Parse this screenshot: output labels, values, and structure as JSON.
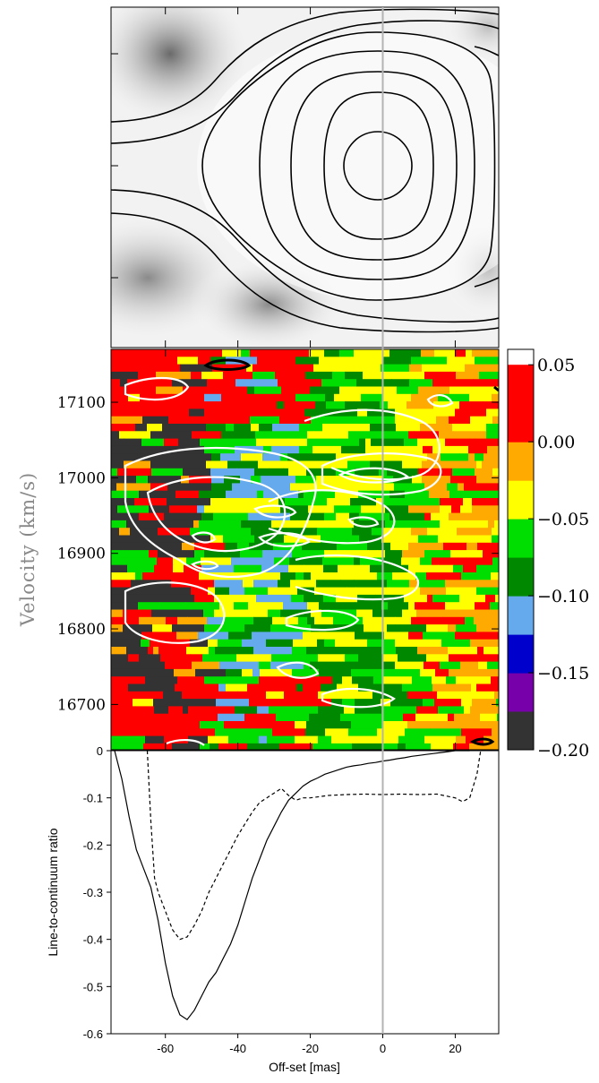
{
  "chart_data": [
    {
      "panel": "top",
      "type": "heatmap",
      "description": "grey-scale continuum image with black contours",
      "xlim": [
        -75,
        32
      ],
      "contour_color": "#000000",
      "vertical_line_x": 0
    },
    {
      "panel": "middle",
      "type": "heatmap",
      "xlim": [
        -75,
        32
      ],
      "ylim": [
        16640,
        17170
      ],
      "ylabel": "Velocity (km/s)",
      "y_ticks": [
        17100,
        17000,
        16900,
        16800,
        16700
      ],
      "y_tick_labels": [
        "17100",
        "17000",
        "16900",
        "16800",
        "16700"
      ],
      "colorbar": {
        "min": -0.2,
        "max": 0.06,
        "step": 0.025,
        "tick_labels": [
          "0.05",
          "0.00",
          "−0.05",
          "−0.10",
          "−0.15",
          "−0.20"
        ],
        "tick_values": [
          0.05,
          0.0,
          -0.05,
          -0.1,
          -0.15,
          -0.2
        ],
        "colors": [
          "#333333",
          "#7700aa",
          "#0000cc",
          "#66aaee",
          "#008800",
          "#00dd00",
          "#ffff00",
          "#ffaa00",
          "#ff0000",
          "#ff0000"
        ]
      },
      "white_contours": true,
      "black_contours": true
    },
    {
      "panel": "bottom",
      "type": "line",
      "xlabel": "Off-set [mas]",
      "ylabel": "Line-to-continuum ratio",
      "xlim": [
        -75,
        32
      ],
      "ylim": [
        -0.6,
        0.0
      ],
      "x_ticks": [
        -60,
        -40,
        -20,
        0,
        20
      ],
      "x_tick_labels": [
        "-60",
        "-40",
        "-20",
        "0",
        "20"
      ],
      "y_ticks": [
        0,
        -0.1,
        -0.2,
        -0.3,
        -0.4,
        -0.5,
        -0.6
      ],
      "y_tick_labels": [
        "0",
        "-0.1",
        "-0.2",
        "-0.3",
        "-0.4",
        "-0.5",
        "-0.6"
      ],
      "series": [
        {
          "style": "solid",
          "x": [
            -74,
            -72,
            -70,
            -68,
            -66,
            -64,
            -62,
            -60,
            -58,
            -56,
            -54,
            -52,
            -50,
            -48,
            -46,
            -44,
            -42,
            -40,
            -38,
            -36,
            -34,
            -32,
            -30,
            -28,
            -26,
            -24,
            -22,
            -20,
            -18,
            -16,
            -14,
            -12,
            -10,
            -8,
            -6,
            -4,
            -2,
            0,
            2,
            4,
            6,
            8,
            10,
            12,
            14,
            16,
            18,
            20,
            22,
            24
          ],
          "y": [
            0.0,
            -0.06,
            -0.14,
            -0.21,
            -0.25,
            -0.29,
            -0.36,
            -0.45,
            -0.52,
            -0.56,
            -0.57,
            -0.55,
            -0.52,
            -0.49,
            -0.47,
            -0.44,
            -0.41,
            -0.37,
            -0.32,
            -0.27,
            -0.23,
            -0.19,
            -0.16,
            -0.13,
            -0.105,
            -0.09,
            -0.075,
            -0.065,
            -0.058,
            -0.05,
            -0.045,
            -0.04,
            -0.035,
            -0.032,
            -0.03,
            -0.027,
            -0.025,
            -0.022,
            -0.02,
            -0.017,
            -0.015,
            -0.012,
            -0.01,
            -0.008,
            -0.006,
            -0.004,
            -0.002,
            0.0,
            0.0,
            0.0
          ]
        },
        {
          "style": "dashed",
          "x": [
            -65,
            -64,
            -63,
            -62,
            -60,
            -58,
            -56,
            -54,
            -52,
            -50,
            -48,
            -46,
            -44,
            -42,
            -40,
            -38,
            -36,
            -34,
            -32,
            -30,
            -28,
            -26,
            -24,
            -22,
            -20,
            -15,
            -10,
            -5,
            0,
            5,
            10,
            15,
            20,
            22,
            24,
            26,
            27
          ],
          "y": [
            0.0,
            -0.15,
            -0.27,
            -0.3,
            -0.34,
            -0.38,
            -0.4,
            -0.395,
            -0.37,
            -0.34,
            -0.3,
            -0.27,
            -0.24,
            -0.21,
            -0.18,
            -0.155,
            -0.13,
            -0.11,
            -0.1,
            -0.09,
            -0.08,
            -0.095,
            -0.105,
            -0.1,
            -0.1,
            -0.095,
            -0.093,
            -0.092,
            -0.093,
            -0.092,
            -0.093,
            -0.092,
            -0.1,
            -0.108,
            -0.1,
            -0.05,
            0.0
          ]
        }
      ]
    }
  ]
}
